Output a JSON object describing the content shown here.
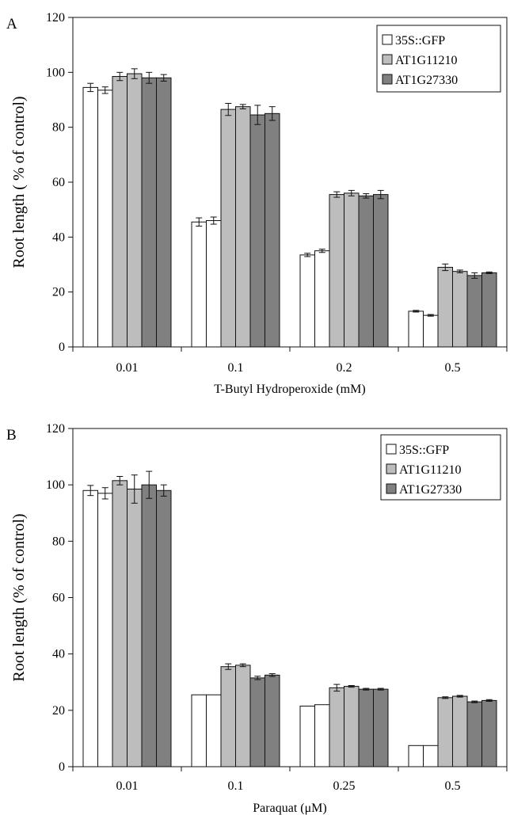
{
  "chart_data": [
    {
      "type": "bar",
      "panel": "A",
      "title": "",
      "xlabel": "T-Butyl Hydroperoxide (mM)",
      "ylabel": "Root length ( % of control)",
      "ylim": [
        0,
        120
      ],
      "yticks": [
        0,
        20,
        40,
        60,
        80,
        100,
        120
      ],
      "categories": [
        "0.01",
        "0.1",
        "0.2",
        "0.5"
      ],
      "grid": false,
      "legend_position": "top-right",
      "bars_per_line": 2,
      "series": [
        {
          "name": "35S::GFP",
          "color": "#ffffff",
          "values": [
            [
              94.5,
              93.5
            ],
            [
              45.5,
              46.0
            ],
            [
              33.5,
              35.0
            ],
            [
              13.0,
              11.5
            ]
          ],
          "errors": [
            [
              1.5,
              1.2
            ],
            [
              1.5,
              1.3
            ],
            [
              0.6,
              0.6
            ],
            [
              0.3,
              0.3
            ]
          ]
        },
        {
          "name": "AT1G11210",
          "color": "#bdbdbd",
          "values": [
            [
              98.5,
              99.5
            ],
            [
              86.5,
              87.5
            ],
            [
              55.5,
              56.0
            ],
            [
              29.0,
              27.5
            ]
          ],
          "errors": [
            [
              1.5,
              1.8
            ],
            [
              2.2,
              0.8
            ],
            [
              1.0,
              1.0
            ],
            [
              1.2,
              0.5
            ]
          ]
        },
        {
          "name": "AT1G27330",
          "color": "#808080",
          "values": [
            [
              98.0,
              98.0
            ],
            [
              84.5,
              85.0
            ],
            [
              55.0,
              55.5
            ],
            [
              26.0,
              27.0
            ]
          ],
          "errors": [
            [
              2.0,
              1.2
            ],
            [
              3.5,
              2.5
            ],
            [
              0.8,
              1.5
            ],
            [
              1.0,
              0.3
            ]
          ]
        }
      ]
    },
    {
      "type": "bar",
      "panel": "B",
      "title": "",
      "xlabel": "Paraquat (μM)",
      "ylabel": "Root length (% of control)",
      "ylim": [
        0,
        120
      ],
      "yticks": [
        0,
        20,
        40,
        60,
        80,
        100,
        120
      ],
      "categories": [
        "0.01",
        "0.1",
        "0.25",
        "0.5"
      ],
      "grid": false,
      "legend_position": "top-right",
      "bars_per_line": 2,
      "series": [
        {
          "name": "35S::GFP",
          "color": "#ffffff",
          "values": [
            [
              98.0,
              97.0
            ],
            [
              25.5,
              25.5
            ],
            [
              21.5,
              22.0
            ],
            [
              7.5,
              7.5
            ]
          ],
          "errors": [
            [
              1.8,
              2.0
            ],
            [
              0.0,
              0.0
            ],
            [
              0.0,
              0.0
            ],
            [
              0.0,
              0.0
            ]
          ]
        },
        {
          "name": "AT1G11210",
          "color": "#bdbdbd",
          "values": [
            [
              101.5,
              98.5
            ],
            [
              35.5,
              36.0
            ],
            [
              28.0,
              28.5
            ],
            [
              24.5,
              25.0
            ]
          ],
          "errors": [
            [
              1.5,
              5.0
            ],
            [
              1.0,
              0.5
            ],
            [
              1.2,
              0.3
            ],
            [
              0.3,
              0.3
            ]
          ]
        },
        {
          "name": "AT1G27330",
          "color": "#808080",
          "values": [
            [
              100.0,
              98.0
            ],
            [
              31.5,
              32.5
            ],
            [
              27.5,
              27.5
            ],
            [
              23.0,
              23.5
            ]
          ],
          "errors": [
            [
              4.8,
              2.0
            ],
            [
              0.6,
              0.5
            ],
            [
              0.3,
              0.3
            ],
            [
              0.3,
              0.3
            ]
          ]
        }
      ]
    }
  ]
}
